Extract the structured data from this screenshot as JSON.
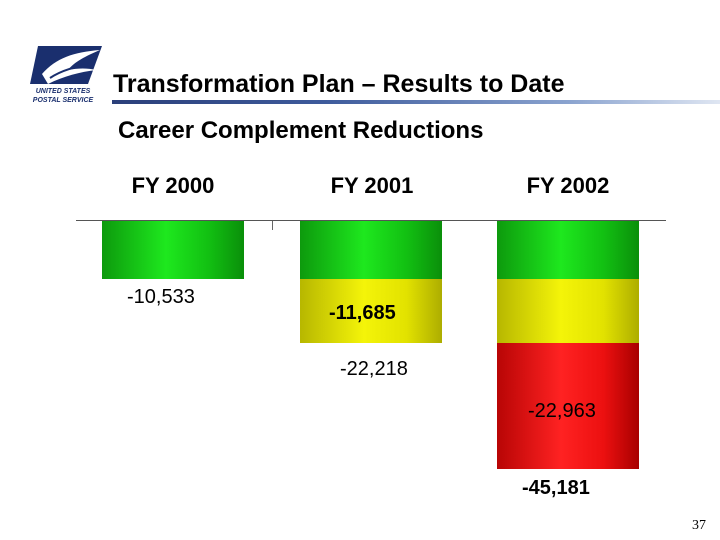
{
  "header": {
    "logo_text_line1": "UNITED STATES",
    "logo_text_line2": "POSTAL SERVICE",
    "title": "Transformation Plan – Results to Date",
    "subtitle": "Career Complement Reductions"
  },
  "colors": {
    "green": "#1ee81e",
    "yellow": "#f4f409",
    "red": "#ff2222",
    "title_rule": "#2b3f7a"
  },
  "chart_data": {
    "type": "bar",
    "stacked": true,
    "orientation": "downward",
    "categories": [
      "FY 2000",
      "FY 2001",
      "FY 2002"
    ],
    "series": [
      {
        "color": "green",
        "values": [
          -10533,
          -10533,
          -10533
        ]
      },
      {
        "color": "yellow",
        "values": [
          null,
          -11685,
          -11685
        ]
      },
      {
        "color": "red",
        "values": [
          null,
          null,
          -22963
        ]
      }
    ],
    "totals": [
      -10533,
      -22218,
      -45181
    ],
    "labels": {
      "fy2000_value": "-10,533",
      "fy2001_added": "-11,685",
      "fy2001_total": "-22,218",
      "fy2002_added": "-22,963",
      "fy2002_total": "-45,181"
    },
    "grid": false
  },
  "footer": {
    "page_number": "37"
  }
}
